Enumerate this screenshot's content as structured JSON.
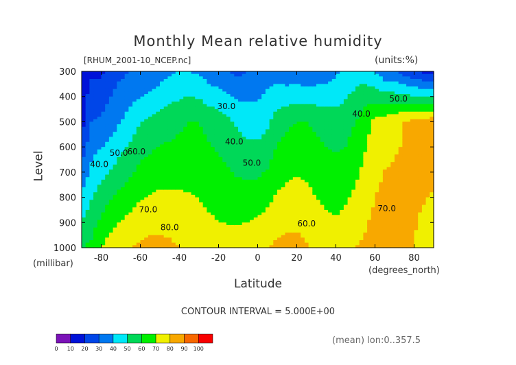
{
  "chart_data": {
    "type": "heatmap",
    "title": "Monthly Mean relative humidity",
    "source_label": "[RHUM_2001-10_NCEP.nc]",
    "units_label": "(units:%)",
    "ylabel": "Level",
    "ylabel_unit": "(millibar)",
    "xlabel": "Latitude",
    "xlabel_unit": "(degrees_north)",
    "contour_interval_label": "CONTOUR INTERVAL = 5.000E+00",
    "footnote": "(mean) lon:0..357.5",
    "xlim": [
      -90,
      90
    ],
    "ylim": [
      1000,
      300
    ],
    "x_ticks": [
      -80,
      -60,
      -40,
      -20,
      0,
      20,
      40,
      60,
      80
    ],
    "y_ticks": [
      300,
      400,
      500,
      600,
      700,
      800,
      900,
      1000
    ],
    "color_levels": [
      0,
      10,
      20,
      30,
      40,
      50,
      60,
      70,
      80,
      90,
      100
    ],
    "colors": [
      "#7b13b8",
      "#0012d8",
      "#0046e8",
      "#0078f0",
      "#00e8f8",
      "#00d858",
      "#00f000",
      "#f0f000",
      "#f8a800",
      "#f86800",
      "#f80000"
    ],
    "contour_labels": [
      {
        "text": "30.0",
        "x": -16,
        "y": 450
      },
      {
        "text": "40.0",
        "x": 53,
        "y": 480
      },
      {
        "text": "50.0",
        "x": 72,
        "y": 420
      },
      {
        "text": "40.0",
        "x": -12,
        "y": 590
      },
      {
        "text": "50.0",
        "x": -3,
        "y": 675
      },
      {
        "text": "60.0",
        "x": 25,
        "y": 915
      },
      {
        "text": "70.0",
        "x": 66,
        "y": 855
      },
      {
        "text": "40.0",
        "x": -81,
        "y": 680
      },
      {
        "text": "50.0",
        "x": -71,
        "y": 635
      },
      {
        "text": "60.0",
        "x": -62,
        "y": 630
      },
      {
        "text": "70.0",
        "x": -56,
        "y": 860
      },
      {
        "text": "80.0",
        "x": -45,
        "y": 930
      }
    ],
    "profiles": {
      "lat": [
        -90,
        -85,
        -80,
        -75,
        -70,
        -65,
        -60,
        -55,
        -50,
        -45,
        -40,
        -35,
        -30,
        -25,
        -20,
        -15,
        -10,
        -5,
        0,
        5,
        10,
        15,
        20,
        25,
        30,
        35,
        40,
        45,
        50,
        55,
        60,
        65,
        70,
        75,
        80,
        85,
        90
      ],
      "rh_300": [
        15,
        18,
        18,
        25,
        28,
        30,
        30,
        32,
        35,
        38,
        40,
        40,
        38,
        35,
        32,
        30,
        28,
        30,
        33,
        36,
        35,
        33,
        33,
        32,
        33,
        35,
        38,
        42,
        45,
        45,
        40,
        32,
        30,
        25,
        20,
        18,
        15
      ],
      "rh_500": [
        15,
        30,
        32,
        35,
        40,
        44,
        50,
        52,
        55,
        56,
        58,
        60,
        60,
        57,
        55,
        52,
        48,
        46,
        45,
        48,
        55,
        58,
        60,
        60,
        58,
        56,
        55,
        56,
        60,
        66,
        72,
        75,
        78,
        80,
        82,
        84,
        86
      ],
      "rh_1000": [
        60,
        62,
        70,
        75,
        78,
        80,
        82,
        83,
        83,
        82,
        80,
        78,
        76,
        75,
        74,
        74,
        75,
        76,
        78,
        80,
        82,
        83,
        83,
        81,
        78,
        76,
        75,
        77,
        80,
        82,
        85,
        88,
        85,
        82,
        80,
        78,
        75
      ]
    }
  }
}
